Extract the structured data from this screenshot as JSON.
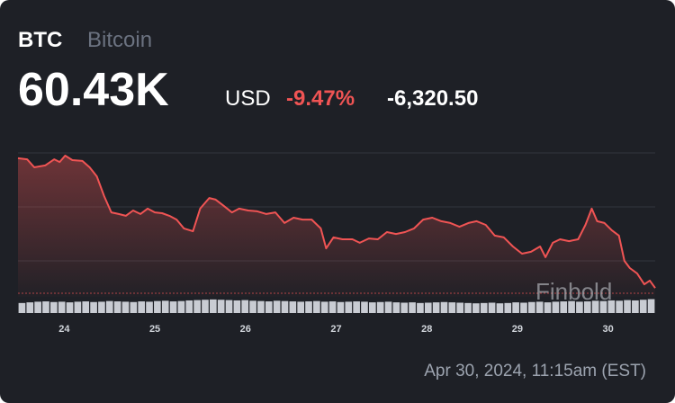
{
  "header": {
    "symbol": "BTC",
    "name": "Bitcoin",
    "price": "60.43K",
    "currency": "USD",
    "change_percent": "-9.47%",
    "change": "-6,320.50"
  },
  "timestamp": "Apr 30, 2024, 11:15am (EST)",
  "watermark": "Finbold",
  "chart_data": {
    "type": "line",
    "xlim": [
      23.49,
      30.52
    ],
    "xticks": [
      24,
      25,
      26,
      27,
      28,
      29,
      30
    ],
    "ylim": [
      60,
      67
    ],
    "grid": true,
    "series": [
      {
        "color": "#f05454",
        "x": [
          23.49,
          23.59,
          23.67,
          23.79,
          23.89,
          23.95,
          24.01,
          24.09,
          24.2,
          24.28,
          24.36,
          24.44,
          24.52,
          24.6,
          24.68,
          24.76,
          24.84,
          24.92,
          25.0,
          25.08,
          25.16,
          25.24,
          25.32,
          25.42,
          25.5,
          25.6,
          25.67,
          25.75,
          25.85,
          25.93,
          26.03,
          26.13,
          26.23,
          26.33,
          26.43,
          26.53,
          26.63,
          26.73,
          26.83,
          26.89,
          26.97,
          27.07,
          27.18,
          27.26,
          27.36,
          27.46,
          27.56,
          27.66,
          27.76,
          27.86,
          27.96,
          28.06,
          28.16,
          28.26,
          28.36,
          28.46,
          28.55,
          28.65,
          28.75,
          28.85,
          28.95,
          29.05,
          29.15,
          29.25,
          29.31,
          29.39,
          29.47,
          29.57,
          29.67,
          29.75,
          29.82,
          29.88,
          29.96,
          30.04,
          30.12,
          30.18,
          30.24,
          30.32,
          30.4,
          30.46,
          30.52
        ],
        "values": [
          66.74,
          66.69,
          66.3,
          66.39,
          66.69,
          66.56,
          66.87,
          66.65,
          66.61,
          66.3,
          65.86,
          64.9,
          64.11,
          64.03,
          63.94,
          64.2,
          64.03,
          64.29,
          64.11,
          64.07,
          63.94,
          63.76,
          63.33,
          63.19,
          64.29,
          64.81,
          64.73,
          64.46,
          64.11,
          64.29,
          64.2,
          64.16,
          64.03,
          64.11,
          63.59,
          63.85,
          63.76,
          63.76,
          63.33,
          62.36,
          62.89,
          62.8,
          62.8,
          62.63,
          62.84,
          62.8,
          63.15,
          63.06,
          63.15,
          63.33,
          63.76,
          63.85,
          63.68,
          63.59,
          63.41,
          63.59,
          63.68,
          63.5,
          62.98,
          62.89,
          62.45,
          62.1,
          62.19,
          62.45,
          61.93,
          62.63,
          62.8,
          62.71,
          62.8,
          63.5,
          64.29,
          63.68,
          63.59,
          63.24,
          62.98,
          61.75,
          61.4,
          61.14,
          60.61,
          60.79,
          60.43
        ]
      }
    ],
    "volume": [
      62,
      66,
      70,
      72,
      68,
      70,
      66,
      70,
      72,
      68,
      70,
      74,
      72,
      70,
      68,
      72,
      70,
      74,
      76,
      72,
      74,
      78,
      80,
      82,
      84,
      82,
      80,
      78,
      80,
      76,
      74,
      72,
      76,
      74,
      72,
      70,
      72,
      74,
      70,
      72,
      68,
      70,
      72,
      70,
      66,
      68,
      70,
      66,
      64,
      66,
      62,
      64,
      66,
      68,
      66,
      64,
      62,
      60,
      62,
      64,
      60,
      62,
      66,
      64,
      68,
      70,
      66,
      70,
      72,
      74,
      70,
      72,
      76,
      74,
      78,
      76,
      80,
      78,
      82,
      86
    ],
    "volume_lim": [
      0,
      100
    ]
  }
}
